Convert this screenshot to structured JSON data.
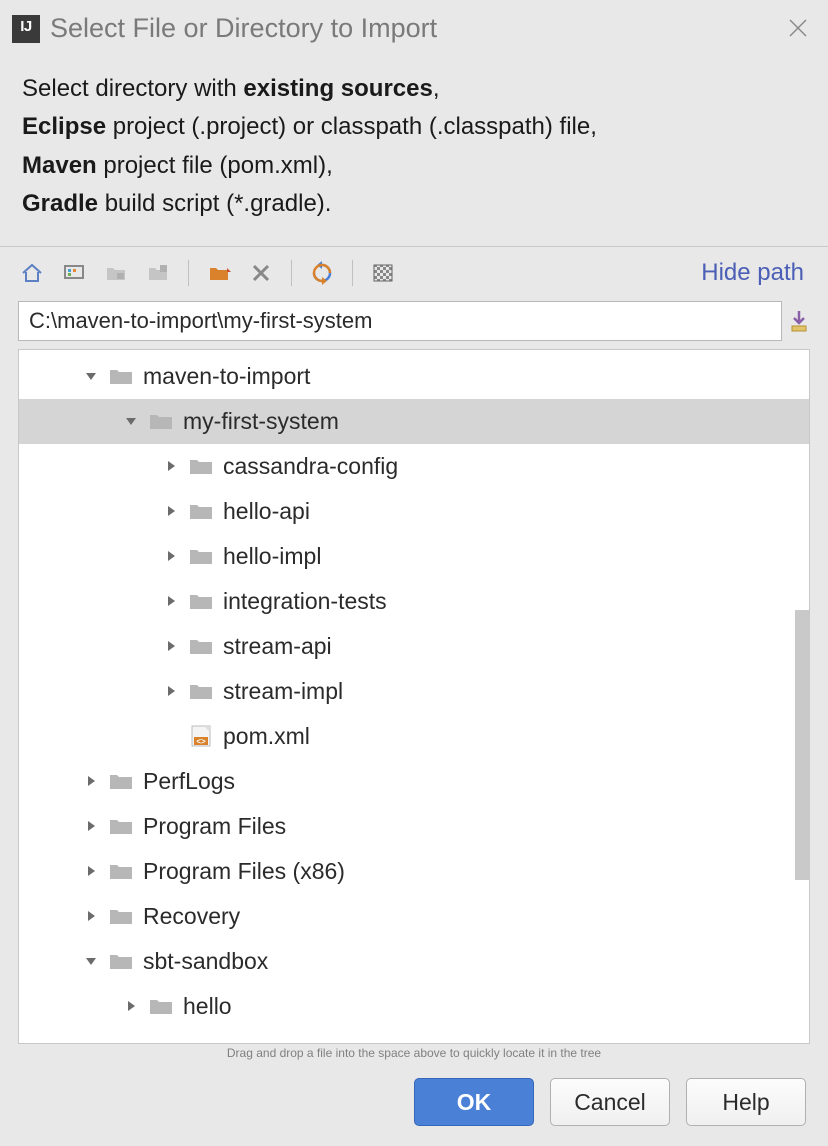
{
  "colors": {
    "window_bg": "#e8e8e8",
    "panel_bg": "#ffffff",
    "selected_row_bg": "#d5d5d5",
    "primary_btn_bg": "#4a80d6",
    "primary_btn_border": "#3567b8",
    "link_color": "#4a5fb5",
    "folder_fill": "#b7b7b7",
    "newfolder_fill": "#d9822b",
    "pom_accent": "#d9822b",
    "title_color": "#7a7a7a",
    "text_color": "#2b2b2b",
    "border_gray": "#c8c8c8",
    "expander_gray": "#6b6b6b"
  },
  "titlebar": {
    "title": "Select File or Directory to Import"
  },
  "instructions": {
    "line1_pre": "Select directory with ",
    "line1_bold": "existing sources",
    "line1_post": ",",
    "line2_bold": "Eclipse",
    "line2_rest": " project (.project) or classpath (.classpath) file,",
    "line3_bold": "Maven",
    "line3_rest": " project file (pom.xml),",
    "line4_bold": "Gradle",
    "line4_rest": " build script (*.gradle)."
  },
  "toolbar": {
    "hide_path_label": "Hide path"
  },
  "path_input": {
    "value": "C:\\maven-to-import\\my-first-system"
  },
  "tree": [
    {
      "depth": 1,
      "expanded": true,
      "kind": "folder",
      "label": "maven-to-import",
      "selected": false
    },
    {
      "depth": 2,
      "expanded": true,
      "kind": "folder",
      "label": "my-first-system",
      "selected": true
    },
    {
      "depth": 3,
      "expanded": false,
      "kind": "folder",
      "label": "cassandra-config",
      "selected": false
    },
    {
      "depth": 3,
      "expanded": false,
      "kind": "folder",
      "label": "hello-api",
      "selected": false
    },
    {
      "depth": 3,
      "expanded": false,
      "kind": "folder",
      "label": "hello-impl",
      "selected": false
    },
    {
      "depth": 3,
      "expanded": false,
      "kind": "folder",
      "label": "integration-tests",
      "selected": false
    },
    {
      "depth": 3,
      "expanded": false,
      "kind": "folder",
      "label": "stream-api",
      "selected": false
    },
    {
      "depth": 3,
      "expanded": false,
      "kind": "folder",
      "label": "stream-impl",
      "selected": false
    },
    {
      "depth": 3,
      "expanded": null,
      "kind": "pom",
      "label": "pom.xml",
      "selected": false
    },
    {
      "depth": 1,
      "expanded": false,
      "kind": "folder",
      "label": "PerfLogs",
      "selected": false
    },
    {
      "depth": 1,
      "expanded": false,
      "kind": "folder",
      "label": "Program Files",
      "selected": false
    },
    {
      "depth": 1,
      "expanded": false,
      "kind": "folder",
      "label": "Program Files (x86)",
      "selected": false
    },
    {
      "depth": 1,
      "expanded": false,
      "kind": "folder",
      "label": "Recovery",
      "selected": false
    },
    {
      "depth": 1,
      "expanded": true,
      "kind": "folder",
      "label": "sbt-sandbox",
      "selected": false
    },
    {
      "depth": 2,
      "expanded": false,
      "kind": "folder",
      "label": "hello",
      "selected": false
    }
  ],
  "dnd_hint": "Drag and drop a file into the space above to quickly locate it in the tree",
  "buttons": {
    "ok": "OK",
    "cancel": "Cancel",
    "help": "Help"
  }
}
